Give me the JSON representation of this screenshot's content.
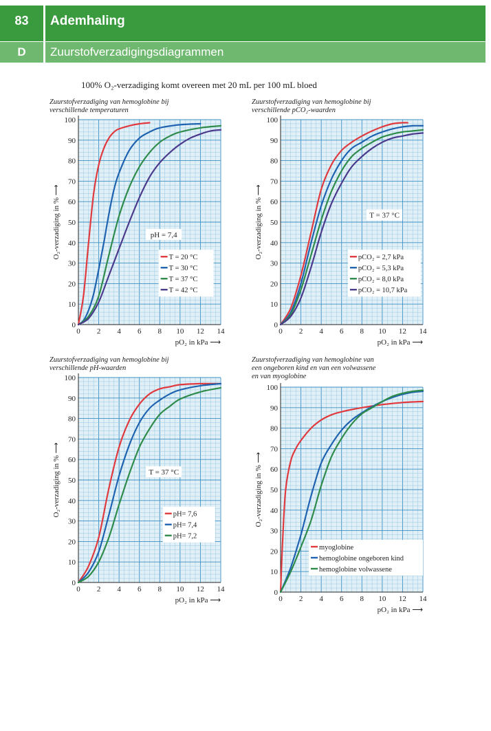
{
  "header": {
    "chapter_number": "83",
    "chapter_title": "Ademhaling",
    "section_letter": "D",
    "section_title": "Zuurstofverzadigingsdiagrammen"
  },
  "intro": "100% O₂-verzadiging komt overeen met 20 mL per 100 mL bloed",
  "chart_data": [
    {
      "type": "line",
      "title": [
        "Zuurstofverzadiging van hemoglobine bij",
        "verschillende temperaturen"
      ],
      "xlabel": "pO₂ in kPa",
      "ylabel": "O₂-verzadiging in %",
      "xlim": [
        0,
        14
      ],
      "ylim": [
        0,
        100
      ],
      "xticks": [
        0,
        2,
        4,
        6,
        8,
        10,
        12,
        14
      ],
      "yticks": [
        0,
        10,
        20,
        30,
        40,
        50,
        60,
        70,
        80,
        90,
        100
      ],
      "grid": true,
      "annotation": "pH = 7,4",
      "legend_position": "bottom-right",
      "series": [
        {
          "name": "T = 20 °C",
          "color": "#e0393e",
          "x": [
            0,
            0.5,
            1,
            1.5,
            2,
            2.5,
            3,
            3.5,
            4,
            5,
            6,
            7
          ],
          "y": [
            0,
            14,
            40,
            64,
            78,
            86,
            91,
            94,
            95.5,
            97,
            98,
            98.5
          ]
        },
        {
          "name": "T = 30 °C",
          "color": "#1f63b0",
          "x": [
            0,
            0.5,
            1,
            1.5,
            2,
            2.5,
            3,
            3.5,
            4,
            5,
            6,
            7,
            8,
            10,
            12
          ],
          "y": [
            0,
            2,
            7,
            15,
            27,
            40,
            54,
            66,
            74,
            85,
            91,
            94,
            96,
            97.5,
            98
          ]
        },
        {
          "name": "T = 37 °C",
          "color": "#2e8b4a",
          "x": [
            0,
            1,
            2,
            3,
            4,
            5,
            6,
            7,
            8,
            9,
            10,
            12,
            14
          ],
          "y": [
            0,
            4,
            14,
            34,
            53,
            67,
            77,
            84,
            89,
            92,
            94,
            96,
            97
          ]
        },
        {
          "name": "T = 42 °C",
          "color": "#4b3a8c",
          "x": [
            0,
            1,
            2,
            3,
            4,
            5,
            6,
            7,
            8,
            9,
            10,
            11,
            12,
            13,
            14
          ],
          "y": [
            0,
            3,
            11,
            24,
            37,
            50,
            62,
            72,
            79,
            84,
            88,
            91,
            93,
            94.5,
            95
          ]
        }
      ]
    },
    {
      "type": "line",
      "title": [
        "Zuurstofverzadiging van hemoglobine bij",
        "verschillende pCO₂-waarden"
      ],
      "xlabel": "pO₂ in kPa",
      "ylabel": "O₂-verzadiging in %",
      "xlim": [
        0,
        14
      ],
      "ylim": [
        0,
        100
      ],
      "xticks": [
        0,
        2,
        4,
        6,
        8,
        10,
        12,
        14
      ],
      "yticks": [
        0,
        10,
        20,
        30,
        40,
        50,
        60,
        70,
        80,
        90,
        100
      ],
      "grid": true,
      "annotation": "T = 37 °C",
      "legend_position": "bottom-right",
      "series": [
        {
          "name": "pCO₂ =   2,7 kPa",
          "color": "#e0393e",
          "x": [
            0,
            1,
            2,
            3,
            4,
            5,
            6,
            7,
            8,
            9,
            10,
            11,
            12,
            12.5
          ],
          "y": [
            0,
            8,
            24,
            45,
            66,
            78,
            85,
            89,
            92,
            94.5,
            96.5,
            98,
            98.5,
            98.5
          ]
        },
        {
          "name": "pCO₂ =   5,3 kPa",
          "color": "#1f63b0",
          "x": [
            0,
            1,
            2,
            3,
            4,
            5,
            6,
            7,
            8,
            9,
            10,
            11,
            12,
            13,
            14
          ],
          "y": [
            0,
            6,
            20,
            40,
            58,
            71,
            80,
            86,
            89,
            92,
            94,
            95.5,
            96.5,
            97,
            97
          ]
        },
        {
          "name": "pCO₂ =   8,0 kPa",
          "color": "#2e8b4a",
          "x": [
            0,
            1,
            2,
            3,
            4,
            5,
            6,
            7,
            8,
            9,
            10,
            11,
            12,
            13,
            14
          ],
          "y": [
            0,
            5,
            17,
            34,
            51,
            65,
            75,
            82,
            86,
            89,
            91.5,
            93,
            94,
            94.5,
            95
          ]
        },
        {
          "name": "pCO₂ = 10,7 kPa",
          "color": "#4b3a8c",
          "x": [
            0,
            1,
            2,
            3,
            4,
            5,
            6,
            7,
            8,
            9,
            10,
            11,
            12,
            13,
            14
          ],
          "y": [
            0,
            4,
            13,
            28,
            45,
            59,
            69,
            77,
            82,
            86,
            89,
            91,
            92,
            93,
            93.5
          ]
        }
      ]
    },
    {
      "type": "line",
      "title": [
        "Zuurstofverzadiging van hemoglobine bij",
        "verschillende pH-waarden"
      ],
      "xlabel": "pO₂ in kPa",
      "ylabel": "O₂-verzadiging in %",
      "xlim": [
        0,
        14
      ],
      "ylim": [
        0,
        100
      ],
      "xticks": [
        0,
        2,
        4,
        6,
        8,
        10,
        12,
        14
      ],
      "yticks": [
        0,
        10,
        20,
        30,
        40,
        50,
        60,
        70,
        80,
        90,
        100
      ],
      "grid": true,
      "annotation": "T = 37 °C",
      "legend_position": "bottom-right",
      "series": [
        {
          "name": "pH= 7,6",
          "color": "#e0393e",
          "x": [
            0,
            1,
            2,
            3,
            4,
            5,
            6,
            7,
            8,
            9,
            10,
            12,
            14
          ],
          "y": [
            0,
            8,
            22,
            46,
            66,
            79,
            87,
            92,
            94.5,
            95.5,
            96.5,
            97,
            97
          ]
        },
        {
          "name": "pH= 7,4",
          "color": "#1f63b0",
          "x": [
            0,
            1,
            2,
            3,
            4,
            5,
            6,
            7,
            8,
            9,
            10,
            12,
            14
          ],
          "y": [
            0,
            5,
            15,
            33,
            52,
            67,
            78,
            85,
            89,
            92,
            94,
            96,
            97
          ]
        },
        {
          "name": "pH= 7,2",
          "color": "#2e8b4a",
          "x": [
            0,
            1,
            2,
            3,
            4,
            5,
            6,
            7,
            8,
            9,
            10,
            12,
            14
          ],
          "y": [
            0,
            3,
            10,
            22,
            38,
            53,
            66,
            75,
            82,
            86,
            89.5,
            93,
            95
          ]
        }
      ]
    },
    {
      "type": "line",
      "title": [
        "Zuurstofverzadiging van hemoglobine van",
        "een ongeboren kind en van een volwassene",
        "en van myoglobine"
      ],
      "xlabel": "pO₂ in kPa",
      "ylabel": "O₂-verzadiging in %",
      "xlim": [
        0,
        14
      ],
      "ylim": [
        0,
        100
      ],
      "xticks": [
        0,
        2,
        4,
        6,
        8,
        10,
        12,
        14
      ],
      "yticks": [
        0,
        10,
        20,
        30,
        40,
        50,
        60,
        70,
        80,
        90,
        100
      ],
      "grid": true,
      "legend_position": "bottom-right",
      "series": [
        {
          "name": "myoglobine",
          "color": "#e0393e",
          "x": [
            0,
            0.2,
            0.5,
            1,
            1.5,
            2,
            3,
            4,
            5,
            6,
            8,
            10,
            12,
            14
          ],
          "y": [
            0,
            25,
            50,
            64,
            70,
            74,
            80,
            84,
            86.5,
            88,
            90,
            91.5,
            92.5,
            93
          ]
        },
        {
          "name": "hemoglobine ongeboren kind",
          "color": "#1f63b0",
          "x": [
            0,
            1,
            2,
            3,
            4,
            5,
            6,
            7,
            8,
            9,
            10,
            11,
            12,
            13,
            14
          ],
          "y": [
            0,
            12,
            28,
            47,
            63,
            72,
            79,
            84,
            87.5,
            90.5,
            93,
            95,
            96.5,
            97.5,
            98
          ]
        },
        {
          "name": "hemoglobine volwassene",
          "color": "#2e8b4a",
          "x": [
            0,
            1,
            2,
            3,
            4,
            5,
            6,
            7,
            8,
            9,
            10,
            11,
            12,
            13,
            14
          ],
          "y": [
            0,
            10,
            22,
            35,
            52,
            66,
            75,
            82,
            87,
            90,
            93,
            95.5,
            97,
            98,
            98.5
          ]
        }
      ]
    }
  ]
}
